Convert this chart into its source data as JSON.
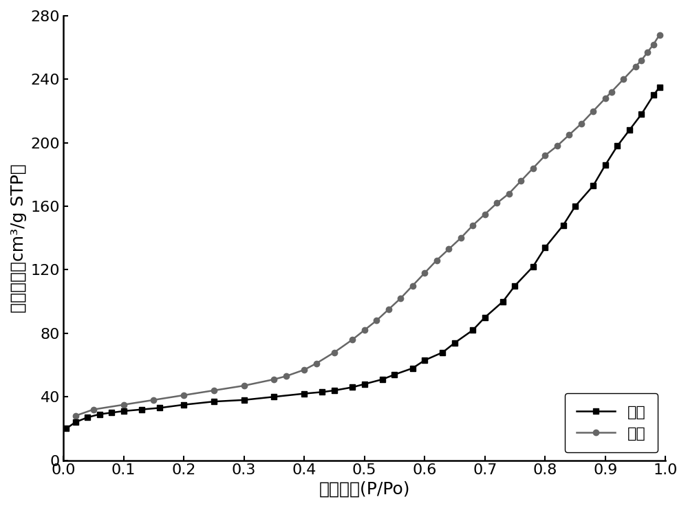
{
  "adsorption_x": [
    0.005,
    0.02,
    0.04,
    0.06,
    0.08,
    0.1,
    0.13,
    0.16,
    0.2,
    0.25,
    0.3,
    0.35,
    0.4,
    0.43,
    0.45,
    0.48,
    0.5,
    0.53,
    0.55,
    0.58,
    0.6,
    0.63,
    0.65,
    0.68,
    0.7,
    0.73,
    0.75,
    0.78,
    0.8,
    0.83,
    0.85,
    0.88,
    0.9,
    0.92,
    0.94,
    0.96,
    0.98,
    0.99
  ],
  "adsorption_y": [
    20,
    24,
    27,
    29,
    30,
    31,
    32,
    33,
    35,
    37,
    38,
    40,
    42,
    43,
    44,
    46,
    48,
    51,
    54,
    58,
    63,
    68,
    74,
    82,
    90,
    100,
    110,
    122,
    134,
    148,
    160,
    173,
    186,
    198,
    208,
    218,
    230,
    235
  ],
  "desorption_x": [
    0.99,
    0.98,
    0.97,
    0.96,
    0.95,
    0.93,
    0.91,
    0.9,
    0.88,
    0.86,
    0.84,
    0.82,
    0.8,
    0.78,
    0.76,
    0.74,
    0.72,
    0.7,
    0.68,
    0.66,
    0.64,
    0.62,
    0.6,
    0.58,
    0.56,
    0.54,
    0.52,
    0.5,
    0.48,
    0.45,
    0.42,
    0.4,
    0.37,
    0.35,
    0.3,
    0.25,
    0.2,
    0.15,
    0.1,
    0.05,
    0.02
  ],
  "desorption_y": [
    268,
    262,
    257,
    252,
    248,
    240,
    232,
    228,
    220,
    212,
    205,
    198,
    192,
    184,
    176,
    168,
    162,
    155,
    148,
    140,
    133,
    126,
    118,
    110,
    102,
    95,
    88,
    82,
    76,
    68,
    61,
    57,
    53,
    51,
    47,
    44,
    41,
    38,
    35,
    32,
    28
  ],
  "xlabel": "相对压力(P/Po)",
  "ylabel": "吸附容量（cm³/g STP）",
  "xlim": [
    0.0,
    1.0
  ],
  "ylim": [
    0,
    280
  ],
  "xticks": [
    0.0,
    0.1,
    0.2,
    0.3,
    0.4,
    0.5,
    0.6,
    0.7,
    0.8,
    0.9,
    1.0
  ],
  "yticks": [
    0,
    40,
    80,
    120,
    160,
    200,
    240,
    280
  ],
  "adsorption_label": "吸附",
  "desorption_label": "脱附",
  "adsorption_color": "#000000",
  "desorption_color": "#666666",
  "line_width": 1.8,
  "marker_size": 6,
  "adsorption_marker": "s",
  "desorption_marker": "o",
  "legend_loc": "lower right",
  "legend_fontsize": 16,
  "xlabel_fontsize": 18,
  "ylabel_fontsize": 18,
  "tick_fontsize": 16,
  "figure_facecolor": "#ffffff",
  "axes_facecolor": "#ffffff"
}
